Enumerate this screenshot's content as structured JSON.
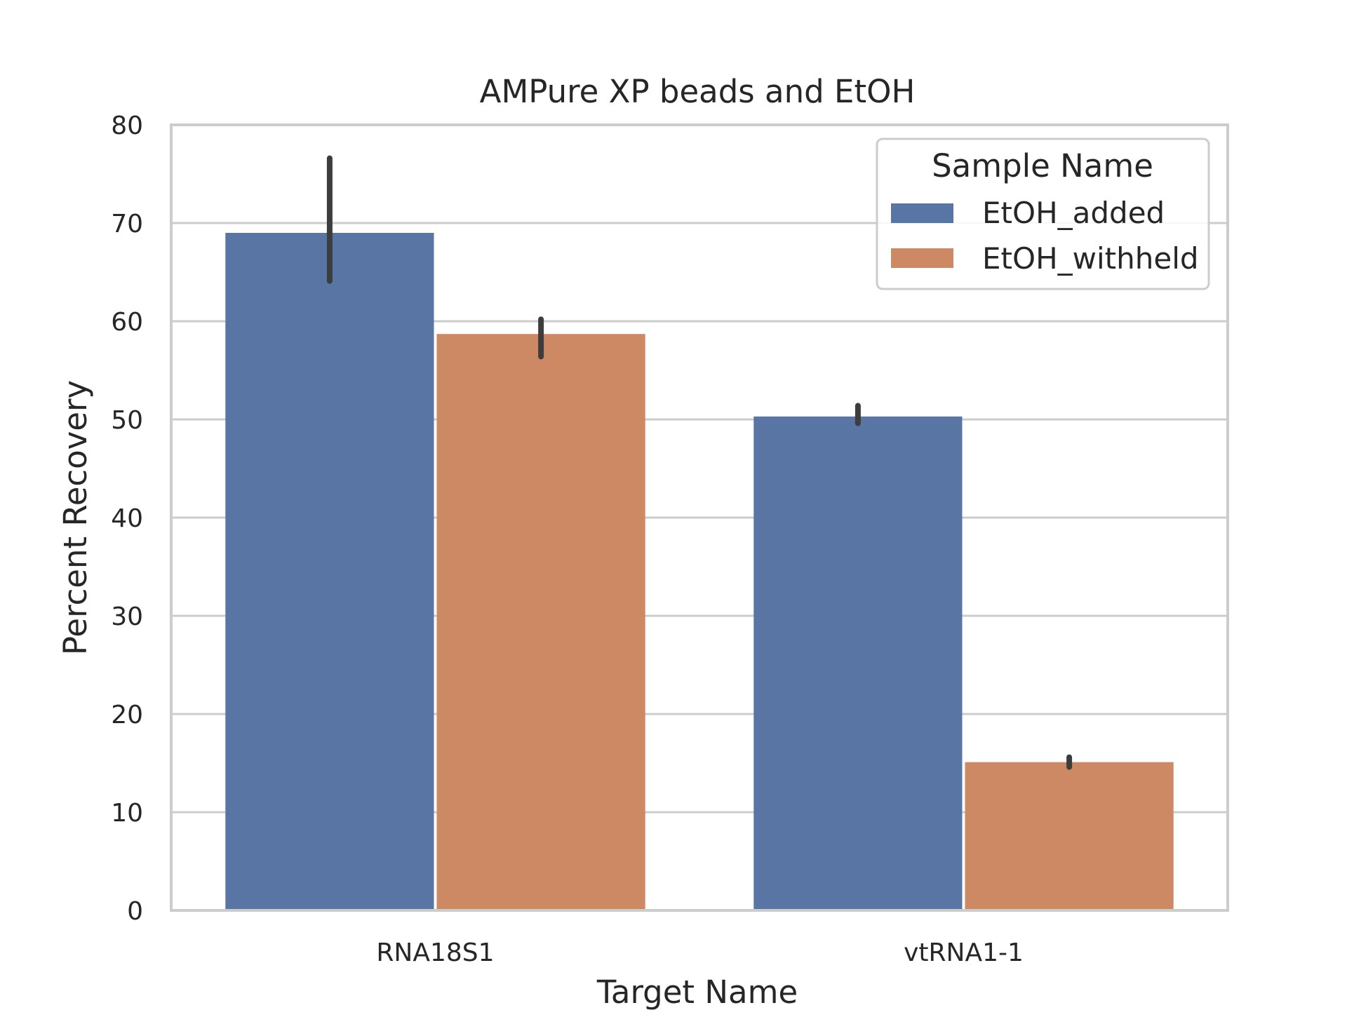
{
  "chart_data": {
    "type": "bar",
    "title": "AMPure XP beads and EtOH",
    "xlabel": "Target Name",
    "ylabel": "Percent Recovery",
    "ylim": [
      0,
      80
    ],
    "yticks": [
      0,
      10,
      20,
      30,
      40,
      50,
      60,
      70,
      80
    ],
    "grid": true,
    "legend": {
      "title": "Sample Name",
      "placement": "top-right"
    },
    "categories": [
      "RNA18S1",
      "vtRNA1-1"
    ],
    "series": [
      {
        "name": "EtOH_added",
        "color": "#5975a4",
        "values": [
          69.0,
          50.3
        ],
        "error_low": [
          64.1,
          49.6
        ],
        "error_high": [
          76.6,
          51.4
        ]
      },
      {
        "name": "EtOH_withheld",
        "color": "#cc8963",
        "values": [
          58.7,
          15.1
        ],
        "error_low": [
          56.4,
          14.6
        ],
        "error_high": [
          60.2,
          15.6
        ]
      }
    ],
    "error_bar_color": "#3d3d3d",
    "grid_color": "#cccccc",
    "frame_color": "#cccccc"
  }
}
